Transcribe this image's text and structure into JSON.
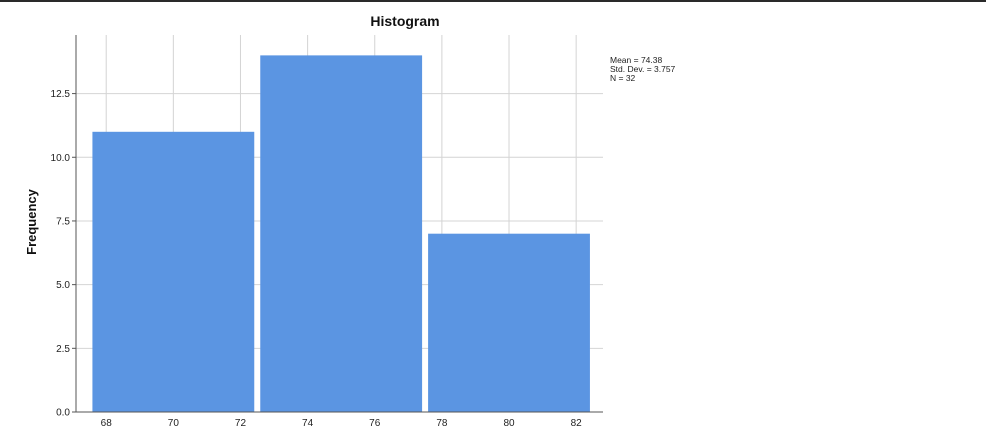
{
  "chart_data": {
    "type": "bar",
    "title": "Histogram",
    "ylabel": "Frequency",
    "xlabel": "",
    "bins": [
      {
        "from": 67.5,
        "to": 72.5,
        "value": 11
      },
      {
        "from": 72.5,
        "to": 77.5,
        "value": 14
      },
      {
        "from": 77.5,
        "to": 82.5,
        "value": 7
      }
    ],
    "x_ticks": [
      "68",
      "70",
      "72",
      "74",
      "76",
      "78",
      "80",
      "82"
    ],
    "x_tick_values": [
      68,
      70,
      72,
      74,
      76,
      78,
      80,
      82
    ],
    "y_ticks": [
      "0.0",
      "2.5",
      "5.0",
      "7.5",
      "10.0",
      "12.5"
    ],
    "y_tick_values": [
      0,
      2.5,
      5,
      7.5,
      10,
      12.5
    ],
    "xlim": [
      67.1,
      82.8
    ],
    "ylim": [
      0,
      14.8
    ],
    "grid": true,
    "bar_color": "#5b95e2",
    "stats": [
      "Mean = 74.38",
      "Std. Dev. = 3.757",
      "N = 32"
    ],
    "stats_position": "top-right"
  }
}
